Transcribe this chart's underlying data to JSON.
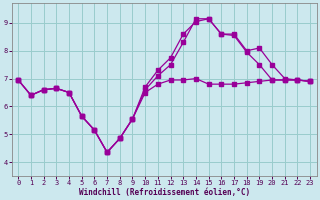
{
  "xlabel": "Windchill (Refroidissement éolien,°C)",
  "background_color": "#cce8ee",
  "grid_color": "#99cccc",
  "line_color": "#990099",
  "xlim": [
    -0.5,
    23.5
  ],
  "ylim": [
    3.5,
    9.7
  ],
  "xticks": [
    0,
    1,
    2,
    3,
    4,
    5,
    6,
    7,
    8,
    9,
    10,
    11,
    12,
    13,
    14,
    15,
    16,
    17,
    18,
    19,
    20,
    21,
    22,
    23
  ],
  "yticks": [
    4,
    5,
    6,
    7,
    8,
    9
  ],
  "series1_x": [
    0,
    1,
    2,
    3,
    4,
    5,
    6,
    7,
    8,
    9,
    10,
    11,
    12,
    13,
    14,
    15,
    16,
    17,
    18,
    19,
    20,
    21,
    22,
    23
  ],
  "series1_y": [
    6.95,
    6.4,
    6.6,
    6.65,
    6.5,
    5.65,
    5.15,
    4.35,
    4.85,
    5.55,
    6.5,
    6.8,
    6.95,
    6.95,
    7.0,
    6.8,
    6.8,
    6.8,
    6.85,
    6.9,
    6.95,
    6.95,
    6.95,
    6.9
  ],
  "series2_x": [
    0,
    1,
    2,
    3,
    4,
    5,
    6,
    7,
    8,
    9,
    10,
    11,
    12,
    13,
    14,
    15,
    16,
    17,
    18,
    19,
    20,
    21,
    22,
    23
  ],
  "series2_y": [
    6.95,
    6.4,
    6.6,
    6.65,
    6.5,
    5.65,
    5.15,
    4.35,
    4.85,
    5.55,
    6.7,
    7.3,
    7.75,
    8.6,
    9.05,
    9.15,
    8.6,
    8.6,
    8.0,
    8.1,
    7.5,
    7.0,
    6.95,
    6.9
  ],
  "series3_x": [
    0,
    1,
    2,
    3,
    4,
    5,
    6,
    7,
    8,
    9,
    10,
    11,
    12,
    13,
    14,
    15,
    16,
    17,
    18,
    19,
    20,
    21,
    22,
    23
  ],
  "series3_y": [
    6.95,
    6.4,
    6.6,
    6.65,
    6.5,
    5.65,
    5.15,
    4.35,
    4.85,
    5.55,
    6.6,
    7.1,
    7.5,
    8.3,
    9.15,
    9.15,
    8.6,
    8.55,
    7.95,
    7.5,
    6.95,
    6.95,
    6.95,
    6.9
  ]
}
